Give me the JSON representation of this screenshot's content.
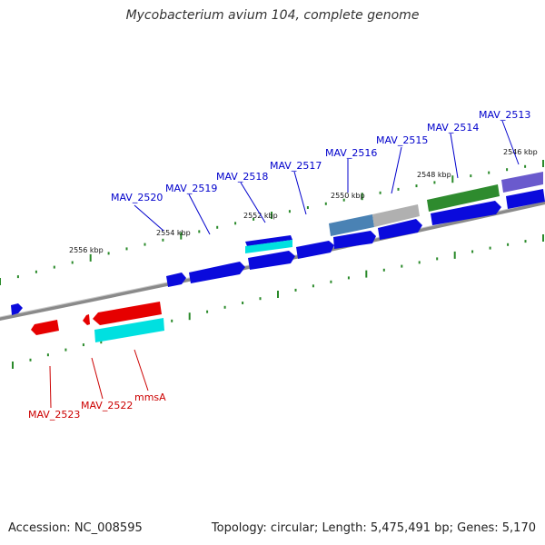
{
  "title": "Mycobacterium avium 104, complete genome",
  "footer": {
    "accession": "Accession: NC_008595",
    "summary": "Topology: circular; Length: 5,475,491 bp; Genes: 5,170"
  },
  "colors": {
    "forward_gene": "#0a0adc",
    "reverse_gene": "#e60000",
    "cds_teal": "#00e0e0",
    "steel": "#4a82b4",
    "gray": "#b0b0b0",
    "green": "#2e8b2e",
    "purple": "#6a5acd",
    "tick_green": "#2a8a2a",
    "backbone": "#7a7a7a",
    "label_blue": "#0000cc",
    "label_red": "#cc0000"
  },
  "kbp_labels": [
    {
      "text": "2556 kbp"
    },
    {
      "text": "2554 kbp"
    },
    {
      "text": "2552 kbp"
    },
    {
      "text": "2550 kbp"
    },
    {
      "text": "2548 kbp"
    },
    {
      "text": "2546 kbp"
    }
  ],
  "forward_labels": [
    "MAV_2520",
    "MAV_2519",
    "MAV_2518",
    "MAV_2517",
    "MAV_2516",
    "MAV_2515",
    "MAV_2514",
    "MAV_2513"
  ],
  "reverse_labels": [
    "MAV_2523",
    "MAV_2522",
    "mmsA"
  ]
}
